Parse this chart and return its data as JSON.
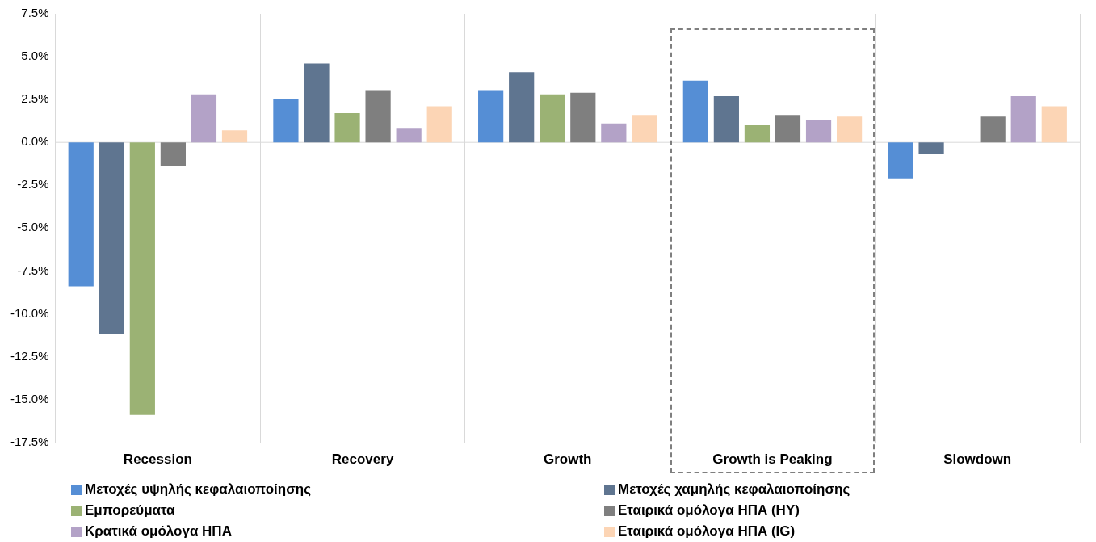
{
  "chart_data": {
    "type": "bar",
    "categories": [
      "Recession",
      "Recovery",
      "Growth",
      "Growth is Peaking",
      "Slowdown"
    ],
    "series": [
      {
        "name": "Μετοχές υψηλής κεφαλαιοποίησης",
        "color": "#558ed5",
        "values": [
          -8.4,
          2.5,
          3.0,
          3.6,
          -2.1
        ]
      },
      {
        "name": "Μετοχές χαμηλής κεφαλαιοποίησης",
        "color": "#5f7590",
        "values": [
          -11.2,
          4.6,
          4.1,
          2.7,
          -0.7
        ]
      },
      {
        "name": "Εμπορεύματα",
        "color": "#9bb274",
        "values": [
          -15.9,
          1.7,
          2.8,
          1.0,
          0.0
        ]
      },
      {
        "name": "Εταιρικά ομόλογα ΗΠΑ (HY)",
        "color": "#7f7f7f",
        "values": [
          -1.4,
          3.0,
          2.9,
          1.6,
          1.5
        ]
      },
      {
        "name": "Κρατικά ομόλογα ΗΠΑ",
        "color": "#b3a2c7",
        "values": [
          2.8,
          0.8,
          1.1,
          1.3,
          2.7
        ]
      },
      {
        "name": "Εταιρικά ομόλογα ΗΠΑ (IG)",
        "color": "#fcd5b5",
        "values": [
          0.7,
          2.1,
          1.6,
          1.5,
          2.1
        ]
      }
    ],
    "ylim": [
      -17.5,
      7.5
    ],
    "yticks": [
      {
        "value": -17.5,
        "label": "-17.5%"
      },
      {
        "value": -15,
        "label": "-15.0%"
      },
      {
        "value": -12.5,
        "label": "-12.5%"
      },
      {
        "value": -10,
        "label": "-10.0%"
      },
      {
        "value": -7.5,
        "label": "-7.5%"
      },
      {
        "value": -5,
        "label": "-5.0%"
      },
      {
        "value": -2.5,
        "label": "-2.5%"
      },
      {
        "value": 0,
        "label": "0.0%"
      },
      {
        "value": 2.5,
        "label": "2.5%"
      },
      {
        "value": 5,
        "label": "5.0%"
      },
      {
        "value": 7.5,
        "label": "7.5%"
      }
    ],
    "ref_lines": [
      {
        "axis": "y",
        "value": 0,
        "color": "#d9d9d9"
      }
    ],
    "grid": "x",
    "legend": "bottom"
  }
}
